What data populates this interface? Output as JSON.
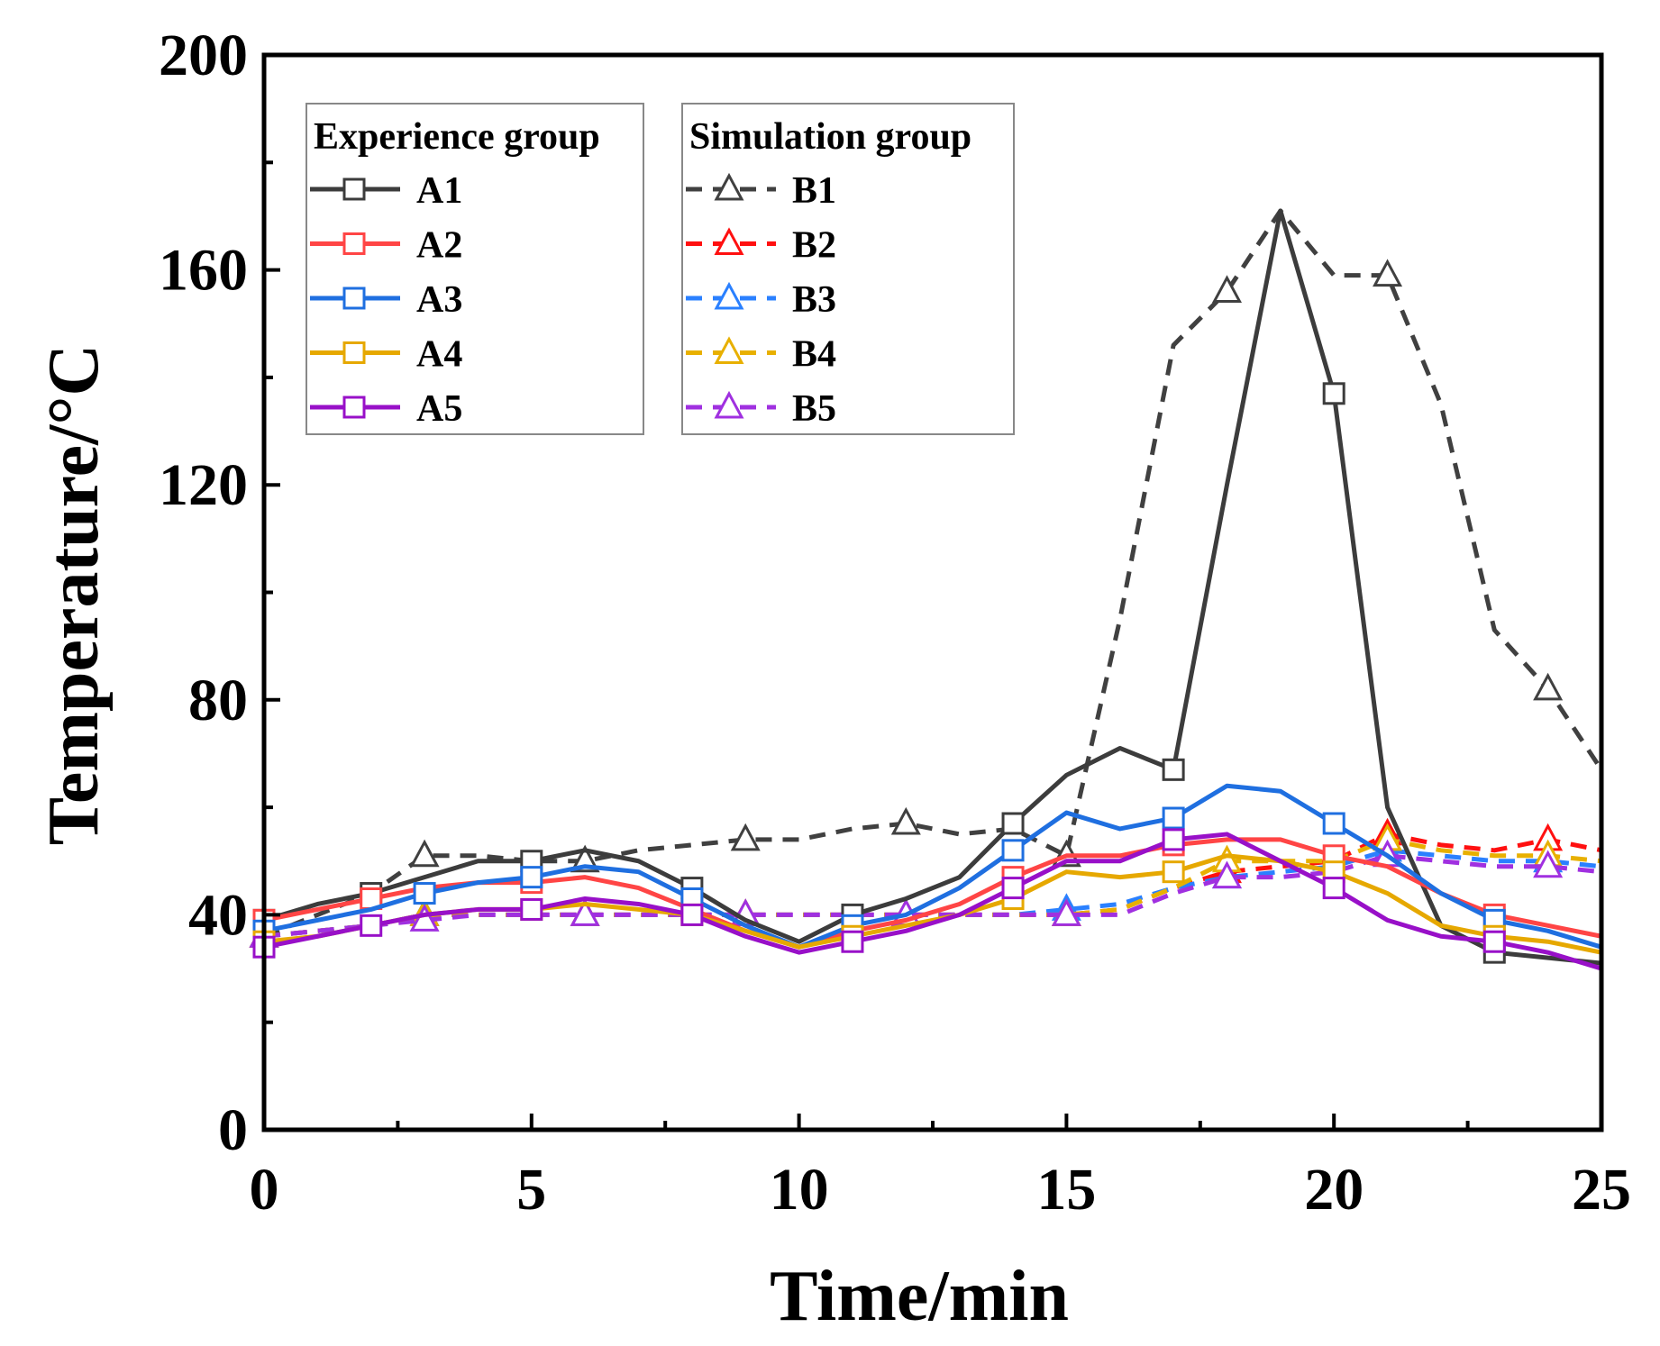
{
  "chart_data": {
    "type": "line",
    "title": "",
    "xlabel": "Time/min",
    "ylabel": "Temperature/°C",
    "xlim": [
      0,
      25
    ],
    "ylim": [
      0,
      200
    ],
    "xticks": [
      0,
      5,
      10,
      15,
      20,
      25
    ],
    "yticks": [
      0,
      40,
      80,
      120,
      160,
      200
    ],
    "grid": false,
    "x": [
      0,
      1,
      2,
      3,
      4,
      5,
      6,
      7,
      8,
      9,
      10,
      11,
      12,
      13,
      14,
      15,
      16,
      17,
      18,
      19,
      20,
      21,
      22,
      23,
      24,
      25
    ],
    "legend_groups": [
      {
        "title": "Experience group",
        "placement": "top-left"
      },
      {
        "title": "Simulation group",
        "placement": "top-center"
      }
    ],
    "series": [
      {
        "name": "A1",
        "group": 0,
        "color": "#3c3c3c",
        "style": "solid",
        "marker": "square",
        "marker_x": [
          0,
          2,
          5,
          8,
          11,
          14,
          17,
          20,
          23
        ],
        "values": [
          39,
          42,
          44,
          47,
          50,
          50,
          52,
          50,
          45,
          39,
          35,
          40,
          43,
          47,
          57,
          66,
          71,
          67,
          120,
          171,
          137,
          60,
          38,
          33,
          32,
          31
        ]
      },
      {
        "name": "A2",
        "group": 0,
        "color": "#ff4545",
        "style": "solid",
        "marker": "square",
        "marker_x": [
          0,
          2,
          5,
          8,
          11,
          14,
          17,
          20,
          23
        ],
        "values": [
          39,
          41,
          43,
          45,
          46,
          46,
          47,
          45,
          41,
          37,
          34,
          37,
          39,
          42,
          47,
          51,
          51,
          53,
          54,
          54,
          51,
          49,
          44,
          40,
          38,
          36
        ]
      },
      {
        "name": "A3",
        "group": 0,
        "color": "#1f6fe0",
        "style": "solid",
        "marker": "square",
        "marker_x": [
          0,
          3,
          5,
          8,
          11,
          14,
          17,
          20,
          23
        ],
        "values": [
          37,
          39,
          41,
          44,
          46,
          47,
          49,
          48,
          43,
          38,
          34,
          38,
          40,
          45,
          52,
          59,
          56,
          58,
          64,
          63,
          57,
          51,
          44,
          39,
          37,
          34
        ]
      },
      {
        "name": "A4",
        "group": 0,
        "color": "#e6a800",
        "style": "solid",
        "marker": "square",
        "marker_x": [
          0,
          5,
          8,
          11,
          14,
          17,
          20,
          23
        ],
        "values": [
          35,
          36,
          38,
          40,
          41,
          41,
          42,
          41,
          40,
          37,
          34,
          36,
          38,
          40,
          43,
          48,
          47,
          48,
          51,
          50,
          48,
          44,
          38,
          36,
          35,
          33
        ]
      },
      {
        "name": "A5",
        "group": 0,
        "color": "#9810c8",
        "style": "solid",
        "marker": "square",
        "marker_x": [
          0,
          2,
          5,
          8,
          11,
          14,
          17,
          20,
          23
        ],
        "values": [
          34,
          36,
          38,
          40,
          41,
          41,
          43,
          42,
          40,
          36,
          33,
          35,
          37,
          40,
          45,
          50,
          50,
          54,
          55,
          50,
          45,
          39,
          36,
          35,
          33,
          30
        ]
      },
      {
        "name": "B1",
        "group": 1,
        "color": "#404040",
        "style": "dashed",
        "marker": "triangle",
        "marker_x": [
          0,
          3,
          6,
          9,
          12,
          15,
          18,
          21,
          24
        ],
        "values": [
          36,
          40,
          44,
          51,
          51,
          50,
          50,
          52,
          53,
          54,
          54,
          56,
          57,
          55,
          56,
          51,
          95,
          146,
          156,
          171,
          159,
          159,
          135,
          93,
          82,
          67
        ]
      },
      {
        "name": "B2",
        "group": 1,
        "color": "#ff1010",
        "style": "dashed",
        "marker": "triangle",
        "marker_x": [
          0,
          3,
          6,
          9,
          12,
          15,
          18,
          21,
          24
        ],
        "values": [
          36,
          37,
          38,
          40,
          40,
          40,
          40,
          40,
          40,
          40,
          40,
          40,
          40,
          40,
          40,
          40,
          41,
          45,
          48,
          49,
          50,
          55,
          53,
          52,
          54,
          52
        ]
      },
      {
        "name": "B3",
        "group": 1,
        "color": "#2a80ff",
        "style": "dashed",
        "marker": "triangle",
        "marker_x": [
          0,
          3,
          6,
          9,
          12,
          15,
          18,
          21,
          24
        ],
        "values": [
          36,
          37,
          38,
          40,
          40,
          40,
          40,
          40,
          40,
          40,
          40,
          40,
          40,
          40,
          40,
          41,
          42,
          45,
          47,
          48,
          49,
          52,
          51,
          50,
          50,
          49
        ]
      },
      {
        "name": "B4",
        "group": 1,
        "color": "#e8b000",
        "style": "dashed",
        "marker": "triangle",
        "marker_x": [
          0,
          3,
          6,
          9,
          12,
          15,
          18,
          21,
          24
        ],
        "values": [
          36,
          37,
          38,
          40,
          40,
          40,
          40,
          40,
          40,
          40,
          40,
          40,
          40,
          40,
          40,
          40,
          41,
          45,
          50,
          50,
          50,
          54,
          52,
          51,
          51,
          50
        ]
      },
      {
        "name": "B5",
        "group": 1,
        "color": "#a030e0",
        "style": "dashed",
        "marker": "triangle",
        "marker_x": [
          0,
          3,
          6,
          9,
          12,
          15,
          18,
          21,
          24
        ],
        "values": [
          36,
          37,
          38,
          39,
          40,
          40,
          40,
          40,
          40,
          40,
          40,
          40,
          40,
          40,
          40,
          40,
          40,
          44,
          47,
          47,
          48,
          51,
          50,
          49,
          49,
          48
        ]
      }
    ]
  }
}
